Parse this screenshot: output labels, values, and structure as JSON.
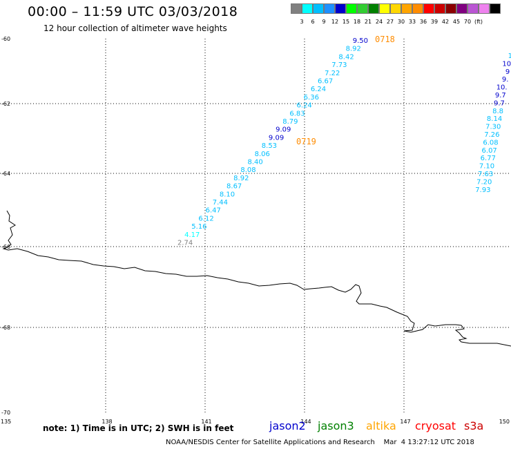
{
  "header": {
    "title": "00:00 – 11:59 UTC 03/03/2018",
    "subtitle": "12 hour collection of altimeter wave heights"
  },
  "legend": {
    "colors": [
      "#808080",
      "#00ffff",
      "#00bfff",
      "#1e90ff",
      "#0000cd",
      "#00ff00",
      "#32cd32",
      "#008000",
      "#ffff00",
      "#ffd700",
      "#ffa500",
      "#ff8c00",
      "#ff0000",
      "#cc0000",
      "#8b0000",
      "#800080",
      "#ba55d3",
      "#ee82ee",
      "#000000"
    ],
    "labels": [
      "3",
      "6",
      "9",
      "12",
      "15",
      "18",
      "21",
      "24",
      "27",
      "30",
      "33",
      "36",
      "39",
      "42",
      "45",
      "70",
      "(ft)"
    ]
  },
  "axes": {
    "lat_labels": [
      "-60",
      "-62",
      "-64",
      "-66",
      "-68",
      "-70"
    ],
    "lon_labels": [
      "135",
      "138",
      "141",
      "144",
      "147",
      "150"
    ]
  },
  "passes": [
    {
      "label": "0718",
      "color": "#ff8c00"
    },
    {
      "label": "0719",
      "color": "#ff8c00"
    }
  ],
  "track_main": {
    "values": [
      "9.50",
      "8.92",
      "8.42",
      "7.73",
      "7.22",
      "6.67",
      "6.24",
      "6.36",
      "6.24",
      "6.83",
      "8.79",
      "9.09",
      "9.09",
      "8.53",
      "8.06",
      "8.40",
      "8.08",
      "8.92",
      "8.67",
      "8.10",
      "7.44",
      "6.47",
      "6.12",
      "5.16",
      "4.17",
      "2.74"
    ],
    "colors": [
      "#0000cd",
      "#00bfff",
      "#00bfff",
      "#00bfff",
      "#00bfff",
      "#00bfff",
      "#00bfff",
      "#00bfff",
      "#00bfff",
      "#00bfff",
      "#00bfff",
      "#0000cd",
      "#0000cd",
      "#00bfff",
      "#00bfff",
      "#00bfff",
      "#00bfff",
      "#00bfff",
      "#00bfff",
      "#00bfff",
      "#00bfff",
      "#00bfff",
      "#00bfff",
      "#00bfff",
      "#00ffff",
      "#808080"
    ]
  },
  "track_right": {
    "values": [
      "1",
      "10",
      "9",
      "9.",
      "10.",
      "9.7",
      "9.7",
      "8.8",
      "8.14",
      "7.30",
      "7.26",
      "6.08",
      "6.07",
      "6.77",
      "7.10",
      "7.63",
      "7.20",
      "7.93"
    ],
    "colors": [
      "#00bfff",
      "#0000cd",
      "#0000cd",
      "#0000cd",
      "#0000cd",
      "#0000cd",
      "#0000cd",
      "#00bfff",
      "#00bfff",
      "#00bfff",
      "#00bfff",
      "#00bfff",
      "#00bfff",
      "#00bfff",
      "#00bfff",
      "#00bfff",
      "#00bfff",
      "#00bfff"
    ]
  },
  "footer": {
    "note": "note: 1) Time is in UTC; 2) SWH is in feet",
    "satellites": [
      {
        "name": "jason2",
        "color": "#0000cd"
      },
      {
        "name": "jason3",
        "color": "#008000"
      },
      {
        "name": "altika",
        "color": "#ffa500"
      },
      {
        "name": "cryosat",
        "color": "#ff0000"
      },
      {
        "name": "s3a",
        "color": "#cc0000"
      }
    ],
    "credit": "NOAA/NESDIS Center for Satellite Applications and Research    Mar  4 13:27:12 UTC 2018"
  }
}
